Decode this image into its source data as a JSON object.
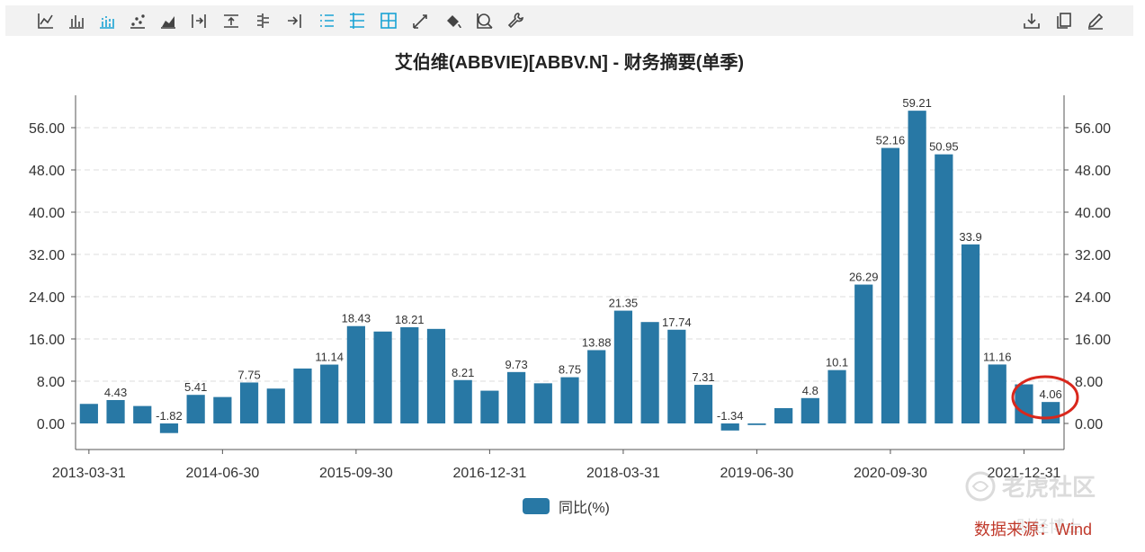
{
  "toolbar": {
    "left_icons": [
      "line-chart-icon",
      "bar-chart-icon",
      "stacked-bar-icon",
      "scatter-icon",
      "area-chart-icon",
      "axis-right-icon",
      "axis-top-icon",
      "list-axis-icon",
      "arrow-right-icon",
      "list-active-icon",
      "table-icon",
      "grid-icon",
      "trend-icon",
      "fill-bucket-icon",
      "zoom-icon",
      "settings-wrench-icon"
    ],
    "right_icons": [
      "download-icon",
      "copy-icon",
      "edit-icon"
    ],
    "accent": "#1aa3d4",
    "icon_color": "#444444"
  },
  "chart_data": {
    "type": "bar",
    "title": "艾伯维(ABBVIE)[ABBV.N] - 财务摘要(单季)",
    "xlabel": "",
    "ylabel": "",
    "ylim": [
      -5,
      62
    ],
    "y_ticks": [
      "0.00",
      "8.00",
      "16.00",
      "24.00",
      "32.00",
      "40.00",
      "48.00",
      "56.00"
    ],
    "x_tick_labels": [
      "2013-03-31",
      "2014-06-30",
      "2015-09-30",
      "2016-12-31",
      "2018-03-31",
      "2019-06-30",
      "2020-09-30",
      "2021-12-31"
    ],
    "categories": [
      "2013-03-31",
      "2013-06-30",
      "2013-09-30",
      "2013-12-31",
      "2014-03-31",
      "2014-06-30",
      "2014-09-30",
      "2014-12-31",
      "2015-03-31",
      "2015-06-30",
      "2015-09-30",
      "2015-12-31",
      "2016-03-31",
      "2016-06-30",
      "2016-09-30",
      "2016-12-31",
      "2017-03-31",
      "2017-06-30",
      "2017-09-30",
      "2017-12-31",
      "2018-03-31",
      "2018-06-30",
      "2018-09-30",
      "2018-12-31",
      "2019-03-31",
      "2019-06-30",
      "2019-09-30",
      "2019-12-31",
      "2020-03-31",
      "2020-06-30",
      "2020-09-30",
      "2020-12-31",
      "2021-03-31",
      "2021-06-30",
      "2021-09-30",
      "2021-12-31",
      "2022-03-31"
    ],
    "series": [
      {
        "name": "同比(%)",
        "color": "#2878a5",
        "values": [
          3.7,
          4.43,
          3.3,
          -1.82,
          5.41,
          5.0,
          7.75,
          6.6,
          10.4,
          11.14,
          18.43,
          17.4,
          18.21,
          17.9,
          8.21,
          6.2,
          9.73,
          7.6,
          8.75,
          13.88,
          21.35,
          19.2,
          17.74,
          7.31,
          -1.34,
          -0.3,
          2.9,
          4.8,
          10.1,
          26.29,
          52.16,
          59.21,
          50.95,
          33.9,
          11.16,
          7.4,
          4.06
        ],
        "labels": [
          "",
          "4.43",
          "",
          "-1.82",
          "5.41",
          "",
          "7.75",
          "",
          "",
          "11.14",
          "18.43",
          "",
          "18.21",
          "",
          "8.21",
          "",
          "9.73",
          "",
          "8.75",
          "13.88",
          "21.35",
          "",
          "17.74",
          "7.31",
          "-1.34",
          "",
          "",
          "4.8",
          "10.1",
          "26.29",
          "52.16",
          "59.21",
          "50.95",
          "33.9",
          "11.16",
          "",
          "4.06"
        ]
      }
    ],
    "grid": true,
    "legend_position": "bottom-center",
    "highlight_color": "#d9271c"
  },
  "legend": {
    "label": "同比(%)",
    "color": "#2878a5"
  },
  "source": "数据来源：Wind",
  "watermark": {
    "text": "老虎社区",
    "sub": "财经博士"
  }
}
